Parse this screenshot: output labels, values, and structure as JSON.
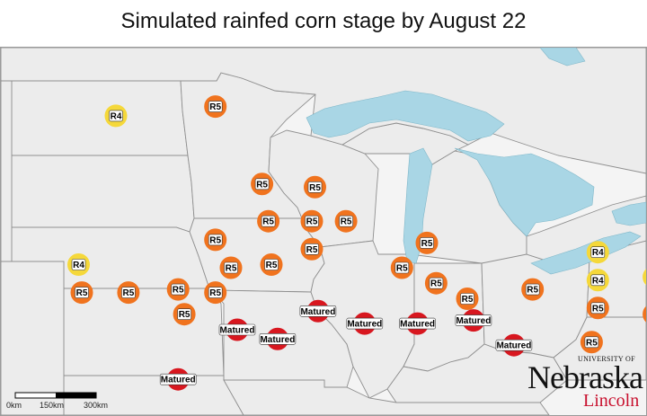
{
  "title": "Simulated rainfed corn stage by August 22",
  "colors": {
    "R4": "#f5d83a",
    "R5": "#f0731e",
    "Matured": "#d8171f",
    "lake": "#a9d6e5",
    "land": "#efefef",
    "border": "#8a8a8a"
  },
  "scale_bar": {
    "labels": [
      "0km",
      "150km",
      "300km"
    ]
  },
  "logo": {
    "university_of": "UNIVERSITY OF",
    "name": "Nebraska",
    "campus": "Lincoln"
  },
  "sites": [
    {
      "stage": "R4",
      "lon": -100.6,
      "lat": 47.5
    },
    {
      "stage": "R5",
      "lon": -97.4,
      "lat": 47.8
    },
    {
      "stage": "R5",
      "lon": -95.9,
      "lat": 45.3
    },
    {
      "stage": "R5",
      "lon": -94.2,
      "lat": 45.2
    },
    {
      "stage": "R5",
      "lon": -95.7,
      "lat": 44.1
    },
    {
      "stage": "R5",
      "lon": -94.3,
      "lat": 44.1
    },
    {
      "stage": "R5",
      "lon": -93.2,
      "lat": 44.1
    },
    {
      "stage": "R5",
      "lon": -97.4,
      "lat": 43.5
    },
    {
      "stage": "R5",
      "lon": -94.3,
      "lat": 43.2
    },
    {
      "stage": "R4",
      "lon": -101.8,
      "lat": 42.7
    },
    {
      "stage": "R5",
      "lon": -96.9,
      "lat": 42.6
    },
    {
      "stage": "R5",
      "lon": -95.6,
      "lat": 42.7
    },
    {
      "stage": "R5",
      "lon": -90.6,
      "lat": 43.4
    },
    {
      "stage": "R5",
      "lon": -91.4,
      "lat": 42.6
    },
    {
      "stage": "R5",
      "lon": -101.7,
      "lat": 41.8
    },
    {
      "stage": "R5",
      "lon": -100.2,
      "lat": 41.8
    },
    {
      "stage": "R5",
      "lon": -98.6,
      "lat": 41.9
    },
    {
      "stage": "R5",
      "lon": -97.4,
      "lat": 41.8
    },
    {
      "stage": "R5",
      "lon": -98.4,
      "lat": 41.1
    },
    {
      "stage": "R5",
      "lon": -90.3,
      "lat": 42.1
    },
    {
      "stage": "R5",
      "lon": -89.3,
      "lat": 41.6
    },
    {
      "stage": "R5",
      "lon": -87.2,
      "lat": 41.9
    },
    {
      "stage": "R4",
      "lon": -85.1,
      "lat": 43.1
    },
    {
      "stage": "R4",
      "lon": -85.1,
      "lat": 42.2
    },
    {
      "stage": "R4",
      "lon": -83.3,
      "lat": 42.3
    },
    {
      "stage": "R4",
      "lon": -81.6,
      "lat": 41.8
    },
    {
      "stage": "R5",
      "lon": -85.1,
      "lat": 41.3
    },
    {
      "stage": "R5",
      "lon": -83.3,
      "lat": 41.1
    },
    {
      "stage": "R5",
      "lon": -85.3,
      "lat": 40.2
    },
    {
      "stage": "Matured",
      "lon": -94.1,
      "lat": 41.2
    },
    {
      "stage": "Matured",
      "lon": -96.7,
      "lat": 40.6
    },
    {
      "stage": "Matured",
      "lon": -95.4,
      "lat": 40.3
    },
    {
      "stage": "Matured",
      "lon": -92.6,
      "lat": 40.8
    },
    {
      "stage": "Matured",
      "lon": -90.9,
      "lat": 40.8
    },
    {
      "stage": "Matured",
      "lon": -89.1,
      "lat": 40.9
    },
    {
      "stage": "Matured",
      "lon": -87.8,
      "lat": 40.1
    },
    {
      "stage": "Matured",
      "lon": -98.6,
      "lat": 39.0
    }
  ]
}
